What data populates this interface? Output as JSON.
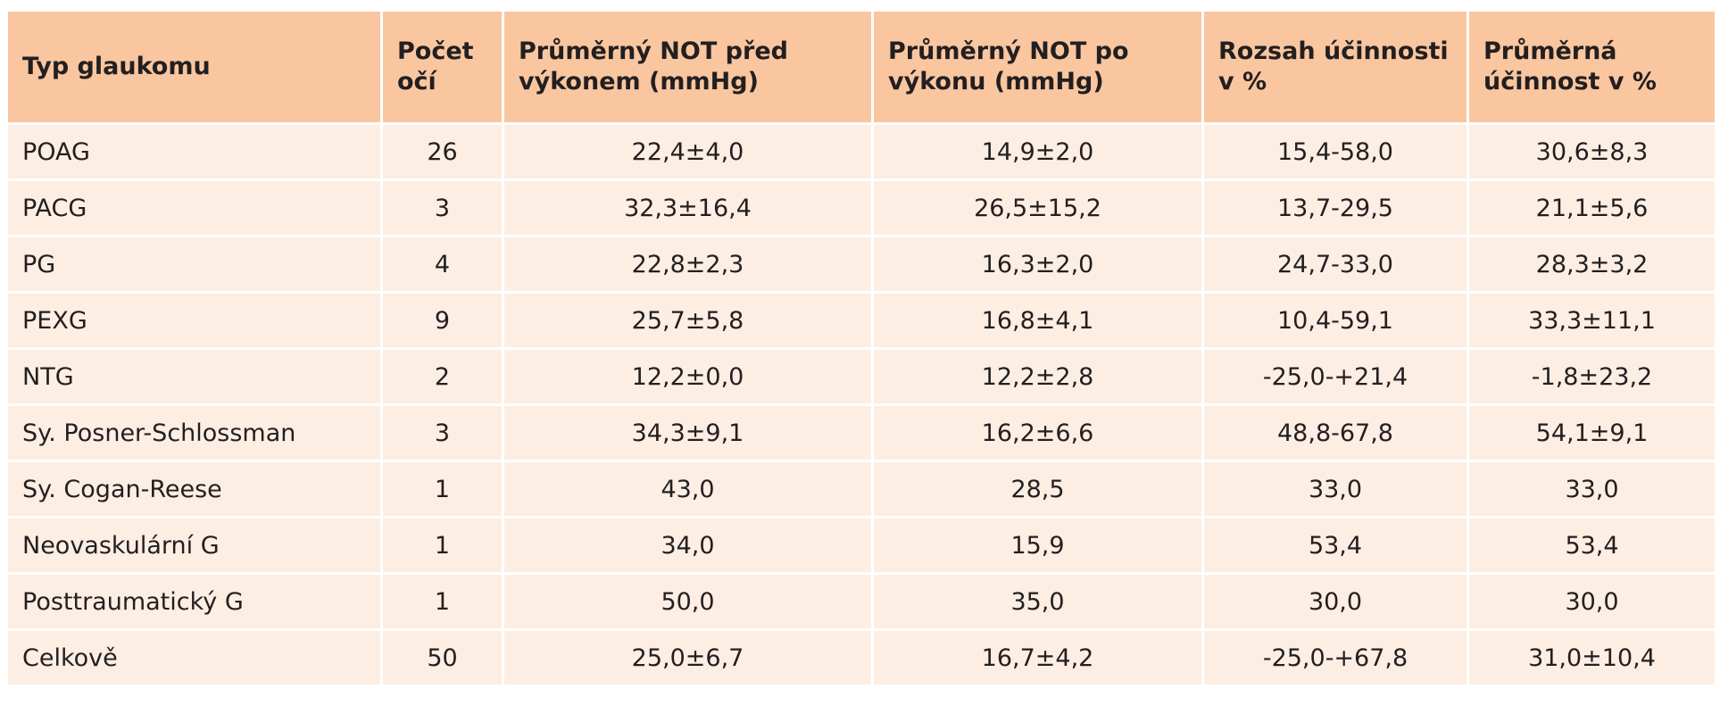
{
  "table": {
    "header": [
      "Typ glaukomu",
      "Počet očí",
      "Průměrný NOT před výkonem (mmHg)",
      "Průměrný NOT po výkonu (mmHg)",
      "Rozsah účinnosti v %",
      "Průměrná účinnost v %"
    ],
    "rows": [
      [
        "POAG",
        "26",
        "22,4±4,0",
        "14,9±2,0",
        "15,4-58,0",
        "30,6±8,3"
      ],
      [
        "PACG",
        "3",
        "32,3±16,4",
        "26,5±15,2",
        "13,7-29,5",
        "21,1±5,6"
      ],
      [
        "PG",
        "4",
        "22,8±2,3",
        "16,3±2,0",
        "24,7-33,0",
        "28,3±3,2"
      ],
      [
        "PEXG",
        "9",
        "25,7±5,8",
        "16,8±4,1",
        "10,4-59,1",
        "33,3±11,1"
      ],
      [
        "NTG",
        "2",
        "12,2±0,0",
        "12,2±2,8",
        "-25,0-+21,4",
        "-1,8±23,2"
      ],
      [
        "Sy. Posner-Schlossman",
        "3",
        "34,3±9,1",
        "16,2±6,6",
        "48,8-67,8",
        "54,1±9,1"
      ],
      [
        "Sy. Cogan-Reese",
        "1",
        "43,0",
        "28,5",
        "33,0",
        "33,0"
      ],
      [
        "Neovaskulární G",
        "1",
        "34,0",
        "15,9",
        "53,4",
        "53,4"
      ],
      [
        "Posttraumatický G",
        "1",
        "50,0",
        "35,0",
        "30,0",
        "30,0"
      ],
      [
        "Celkově",
        "50",
        "25,0±6,7",
        "16,7±4,2",
        "-25,0-+67,8",
        "31,0±10,4"
      ]
    ]
  }
}
